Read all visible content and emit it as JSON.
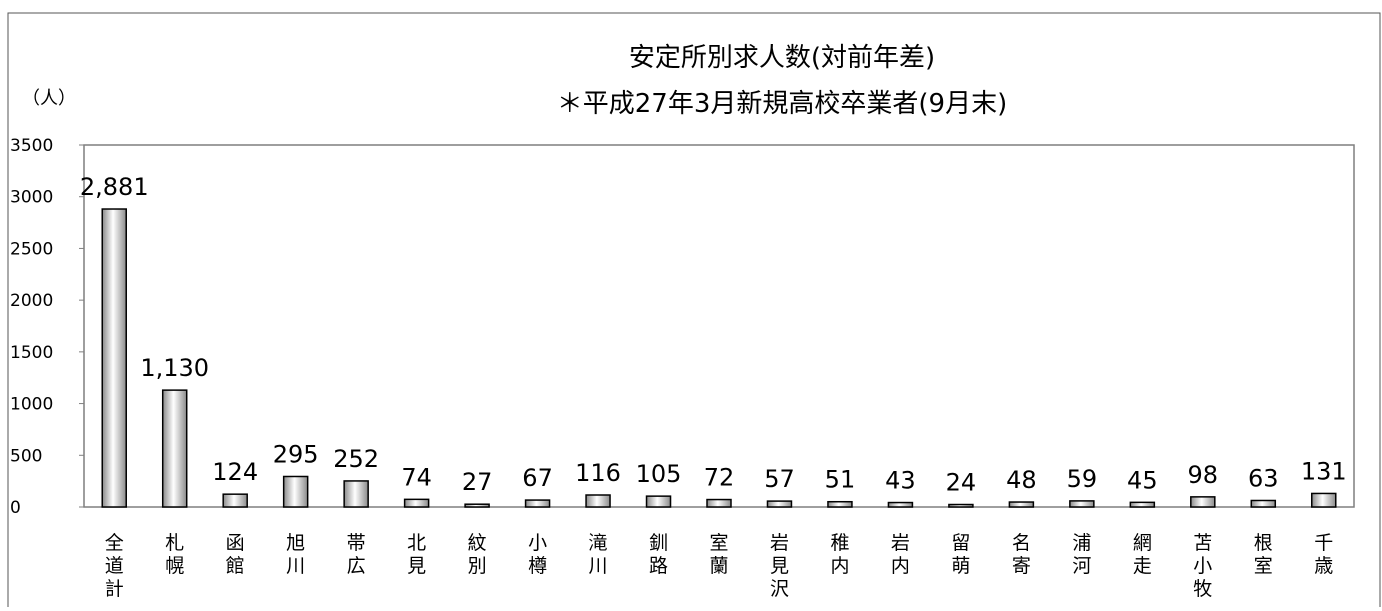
{
  "chart_data": {
    "type": "bar",
    "title": "安定所別求人数(対前年差)",
    "subtitle": "＊平成27年3月新規高校卒業者(9月末)",
    "ylabel": "（人）",
    "xlabel": "",
    "ylim": [
      0,
      3500
    ],
    "yticks": [
      "0",
      "500",
      "1000",
      "1500",
      "2000",
      "2500",
      "3000",
      "3500"
    ],
    "grid": false,
    "legend": "none",
    "categories": [
      "全道計",
      "札幌",
      "函館",
      "旭川",
      "帯広",
      "北見",
      "紋別",
      "小樽",
      "滝川",
      "釧路",
      "室蘭",
      "岩見沢",
      "稚内",
      "岩内",
      "留萌",
      "名寄",
      "浦河",
      "網走",
      "苫小牧",
      "根室",
      "千歳"
    ],
    "values": [
      2881,
      1130,
      124,
      295,
      252,
      74,
      27,
      67,
      116,
      105,
      72,
      57,
      51,
      43,
      24,
      48,
      59,
      45,
      98,
      63,
      131
    ],
    "data_labels": [
      "2,881",
      "1,130",
      "124",
      "295",
      "252",
      "74",
      "27",
      "67",
      "116",
      "105",
      "72",
      "57",
      "51",
      "43",
      "24",
      "48",
      "59",
      "45",
      "98",
      "63",
      "131"
    ],
    "colors": {
      "bar_fill_light": "#ffffff",
      "bar_fill_dark": "#8a8a8a",
      "bar_stroke": "#000000",
      "frame": "#7f7f7f"
    }
  }
}
